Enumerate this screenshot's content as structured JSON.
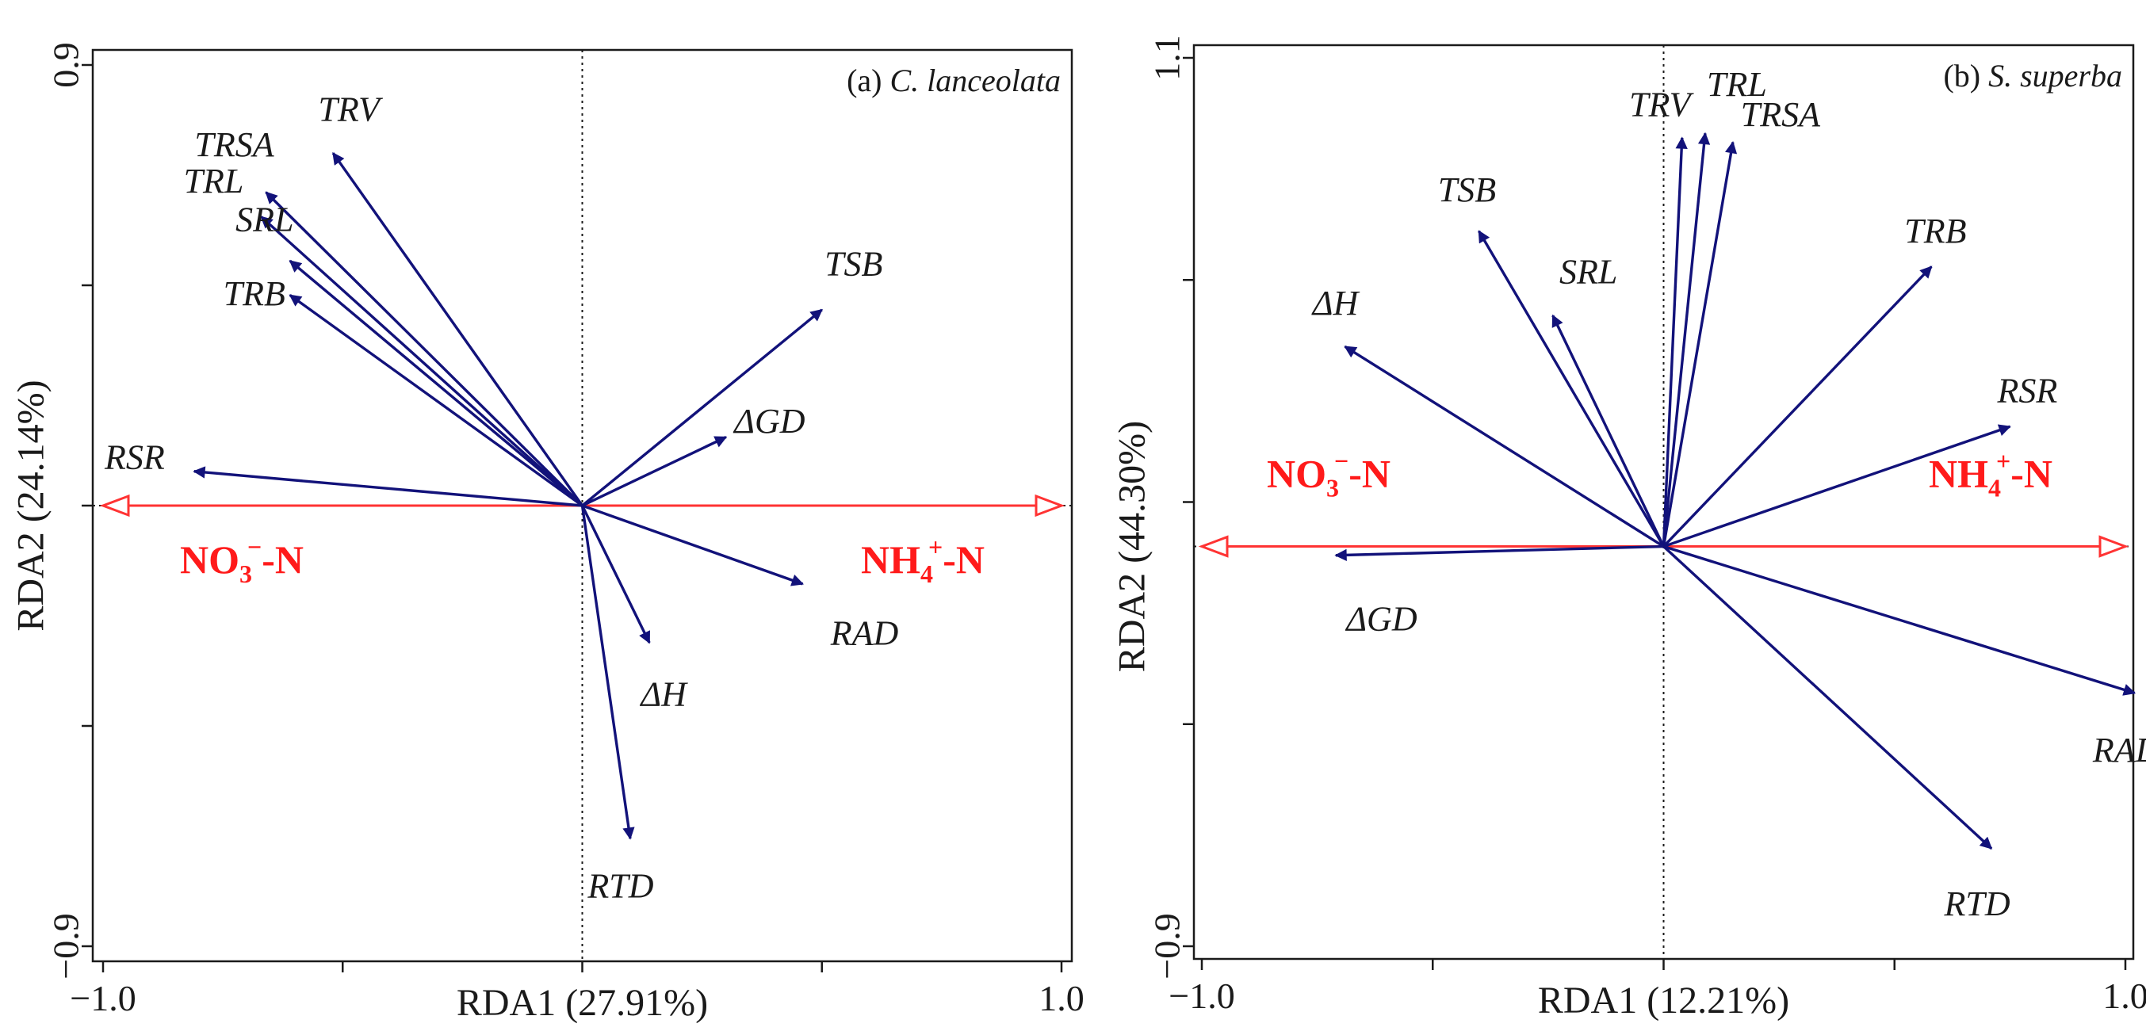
{
  "chart_data": [
    {
      "type": "scatter",
      "subtype": "rda-biplot",
      "panel_prefix": "(a)",
      "species": "C. lanceolata",
      "xlabel": "RDA1 (27.91%)",
      "ylabel": "RDA2 (24.14%)",
      "xlim": [
        -1.0,
        1.0
      ],
      "ylim": [
        -0.9,
        0.9
      ],
      "x_tick_labels": [
        "−1.0",
        "1.0"
      ],
      "y_tick_labels": [
        "0.9",
        "−0.9"
      ],
      "env_vectors": [
        {
          "name": "NO",
          "sub": "3",
          "sup": "−",
          "suffix": "-N",
          "x": -1.0,
          "y": 0.0
        },
        {
          "name": "NH",
          "sub": "4",
          "sup": "+",
          "suffix": "-N",
          "x": 1.0,
          "y": 0.0
        }
      ],
      "response_vectors": [
        {
          "name": "TRV",
          "x": -0.52,
          "y": 0.72
        },
        {
          "name": "TRSA",
          "x": -0.66,
          "y": 0.64
        },
        {
          "name": "TRL",
          "x": -0.67,
          "y": 0.59
        },
        {
          "name": "SRL",
          "x": -0.61,
          "y": 0.5
        },
        {
          "name": "TRB",
          "x": -0.61,
          "y": 0.43
        },
        {
          "name": "TSB",
          "x": 0.5,
          "y": 0.4
        },
        {
          "name": "ΔGD",
          "x": 0.3,
          "y": 0.14
        },
        {
          "name": "RSR",
          "x": -0.81,
          "y": 0.07
        },
        {
          "name": "RAD",
          "x": 0.46,
          "y": -0.16
        },
        {
          "name": "ΔH",
          "x": 0.14,
          "y": -0.28
        },
        {
          "name": "RTD",
          "x": 0.1,
          "y": -0.68
        }
      ]
    },
    {
      "type": "scatter",
      "subtype": "rda-biplot",
      "panel_prefix": "(b)",
      "species": "S. superba",
      "xlabel": "RDA1 (12.21%)",
      "ylabel": "RDA2 (44.30%)",
      "xlim": [
        -1.0,
        1.0
      ],
      "ylim": [
        -0.9,
        1.1
      ],
      "x_tick_labels": [
        "−1.0",
        "1.0"
      ],
      "y_tick_labels": [
        "1.1",
        "−0.9"
      ],
      "env_vectors": [
        {
          "name": "NO",
          "sub": "3",
          "sup": "−",
          "suffix": "-N",
          "x": -1.0,
          "y": 0.0
        },
        {
          "name": "NH",
          "sub": "4",
          "sup": "+",
          "suffix": "-N",
          "x": 1.0,
          "y": 0.0
        }
      ],
      "response_vectors": [
        {
          "name": "TRV",
          "x": 0.04,
          "y": 0.92
        },
        {
          "name": "TRL",
          "x": 0.09,
          "y": 0.93
        },
        {
          "name": "TRSA",
          "x": 0.15,
          "y": 0.91
        },
        {
          "name": "TSB",
          "x": -0.4,
          "y": 0.71
        },
        {
          "name": "SRL",
          "x": -0.24,
          "y": 0.52
        },
        {
          "name": "TRB",
          "x": 0.58,
          "y": 0.63
        },
        {
          "name": "ΔH",
          "x": -0.69,
          "y": 0.45
        },
        {
          "name": "RSR",
          "x": 0.75,
          "y": 0.27
        },
        {
          "name": "ΔGD",
          "x": -0.71,
          "y": -0.02
        },
        {
          "name": "RAD",
          "x": 1.02,
          "y": -0.33
        },
        {
          "name": "RTD",
          "x": 0.71,
          "y": -0.68
        }
      ]
    }
  ]
}
